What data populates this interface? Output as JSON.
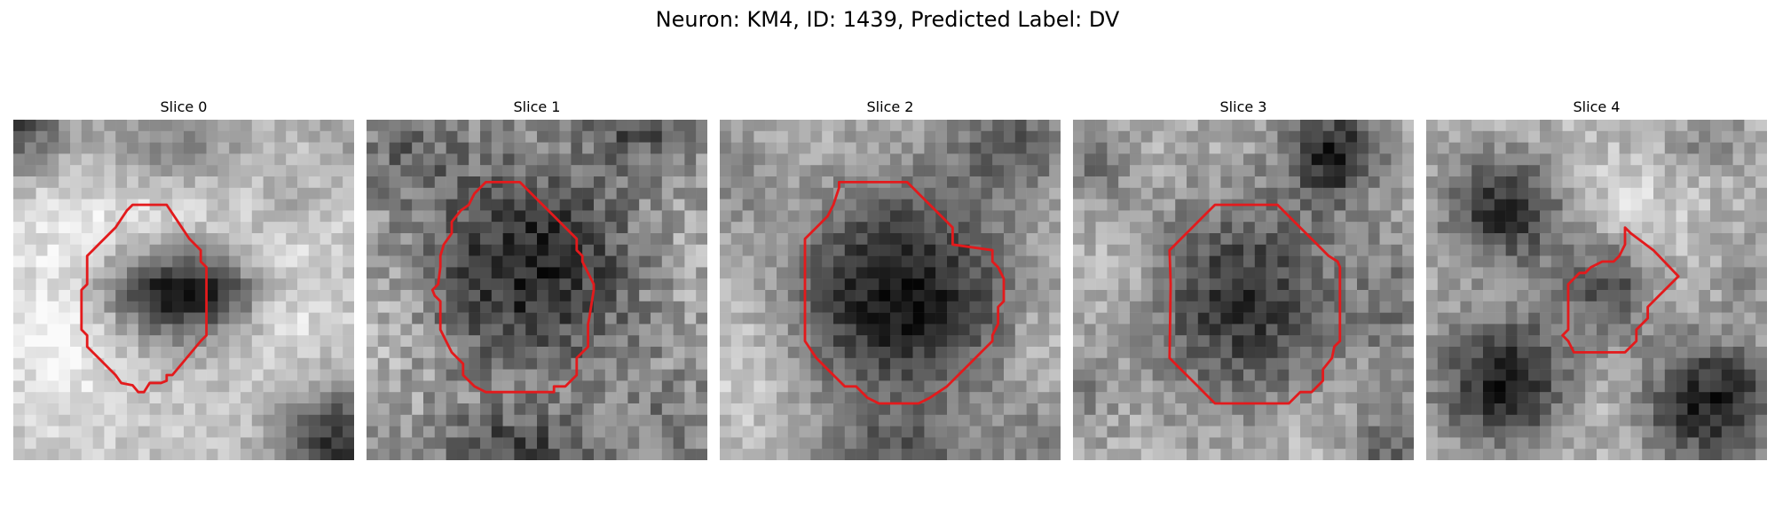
{
  "figure": {
    "suptitle": "Neuron: KM4, ID: 1439, Predicted Label: DV",
    "contour_color": "#e31a1c"
  },
  "slices": [
    {
      "title": "Slice 0"
    },
    {
      "title": "Slice 1"
    },
    {
      "title": "Slice 2"
    },
    {
      "title": "Slice 3"
    },
    {
      "title": "Slice 4"
    }
  ]
}
